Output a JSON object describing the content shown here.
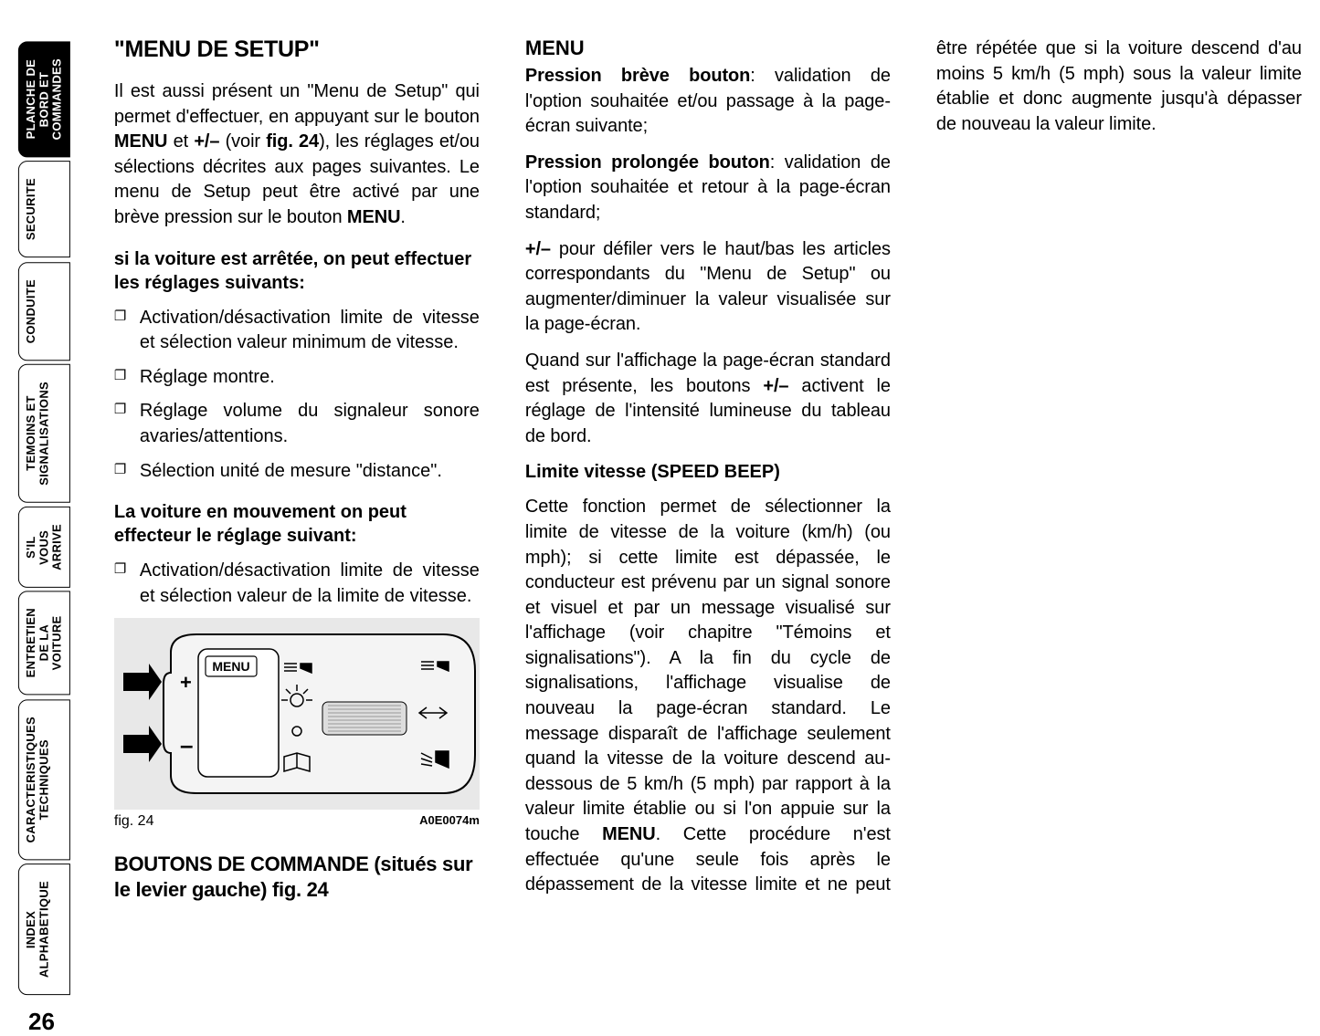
{
  "tabs": [
    {
      "label": "PLANCHE DE\nBORD ET\nCOMMANDES",
      "active": true
    },
    {
      "label": "SECURITE",
      "active": false
    },
    {
      "label": "CONDUITE",
      "active": false
    },
    {
      "label": "TEMOINS ET\nSIGNALISATIONS",
      "active": false
    },
    {
      "label": "S'IL VOUS\nARRIVE",
      "active": false
    },
    {
      "label": "ENTRETIEN\nDE LA VOITURE",
      "active": false
    },
    {
      "label": "CARACTERISTIQUES\nTECHNIQUES",
      "active": false
    },
    {
      "label": "INDEX\nALPHABETIQUE",
      "active": false
    }
  ],
  "page_number": "26",
  "col1": {
    "h1": "\"MENU DE SETUP\"",
    "p1a": "Il est aussi présent un \"Menu de Setup\" qui permet d'effectuer, en appuyant sur le bouton ",
    "p1_menu": "MENU",
    "p1b": " et ",
    "p1_plusminus": "+/–",
    "p1c": " (voir ",
    "p1_fig": "fig. 24",
    "p1d": "), les réglages et/ou sélections décrites aux pages suivantes. Le menu de Setup peut être activé par une brève pression sur le bouton ",
    "p1_menu2": "MENU",
    "p1e": ".",
    "sub1": "si la voiture est arrêtée, on peut effectuer les réglages suivants:",
    "li1": "Activation/désactivation limite de vitesse et sélection valeur minimum de vitesse.",
    "li2": "Réglage montre.",
    "li3": "Réglage volume du signaleur sonore avaries/attentions.",
    "li4": "Sélection unité de mesure \"distance\".",
    "sub2": "La voiture en mouvement on peut effecteur le réglage suivant:",
    "li5": "Activation/désactivation limite de vitesse et sélection valeur de la limite de vitesse."
  },
  "figure": {
    "caption": "fig. 24",
    "code": "A0E0074m",
    "menu_label": "MENU",
    "plus": "+",
    "minus": "–"
  },
  "col2": {
    "h2": "BOUTONS DE COMMANDE (situés sur le levier gauche) fig. 24",
    "h3": "MENU",
    "p_breve_label": "Pression brève bouton",
    "p_breve": ": validation de l'option souhaitée et/ou passage à la page-écran suivante;",
    "p_long_label": "Pression prolongée bouton",
    "p_long": ": validation de l'option souhaitée et retour à la page-écran standard;",
    "p_pm_label": "+/–",
    "p_pm": "  pour défiler vers le haut/bas les articles correspondants du \"Menu de Setup\" ou augmenter/diminuer la valeur visualisée sur la page-écran.",
    "p_std_a": "Quand sur l'affichage la page-écran standard est présente, les boutons ",
    "p_std_pm": "+/–",
    "p_std_b": " activent le réglage de l'intensité lumineuse du tableau de bord."
  },
  "col3": {
    "sub": "Limite vitesse (SPEED BEEP)",
    "p_a": "Cette fonction permet de sélectionner la limite de vitesse de la voiture (km/h) (ou mph); si cette limite est dépassée, le conducteur est prévenu par un signal sonore et visuel et par un message visualisé sur l'affichage (voir chapitre \"Témoins et signalisations\"). A la fin du cycle de signalisations, l'affichage visualise de nouveau la page-écran standard. Le message disparaît de l'affichage seulement quand la vitesse de la voiture descend au-dessous de 5 km/h (5 mph) par rapport à la valeur limite établie ou si l'on appuie sur la touche ",
    "p_menu": "MENU",
    "p_b": ". Cette procédure n'est effectuée qu'une seule fois après le dépassement de la vitesse limite et ne peut être répétée que si la voiture descend d'au moins 5 km/h (5 mph) sous la valeur limite établie et donc augmente jusqu'à dépasser de nouveau la valeur limite."
  },
  "colors": {
    "text": "#000000",
    "bg": "#ffffff",
    "fig_bg": "#e8e8e8",
    "fig_stroke": "#000000"
  }
}
